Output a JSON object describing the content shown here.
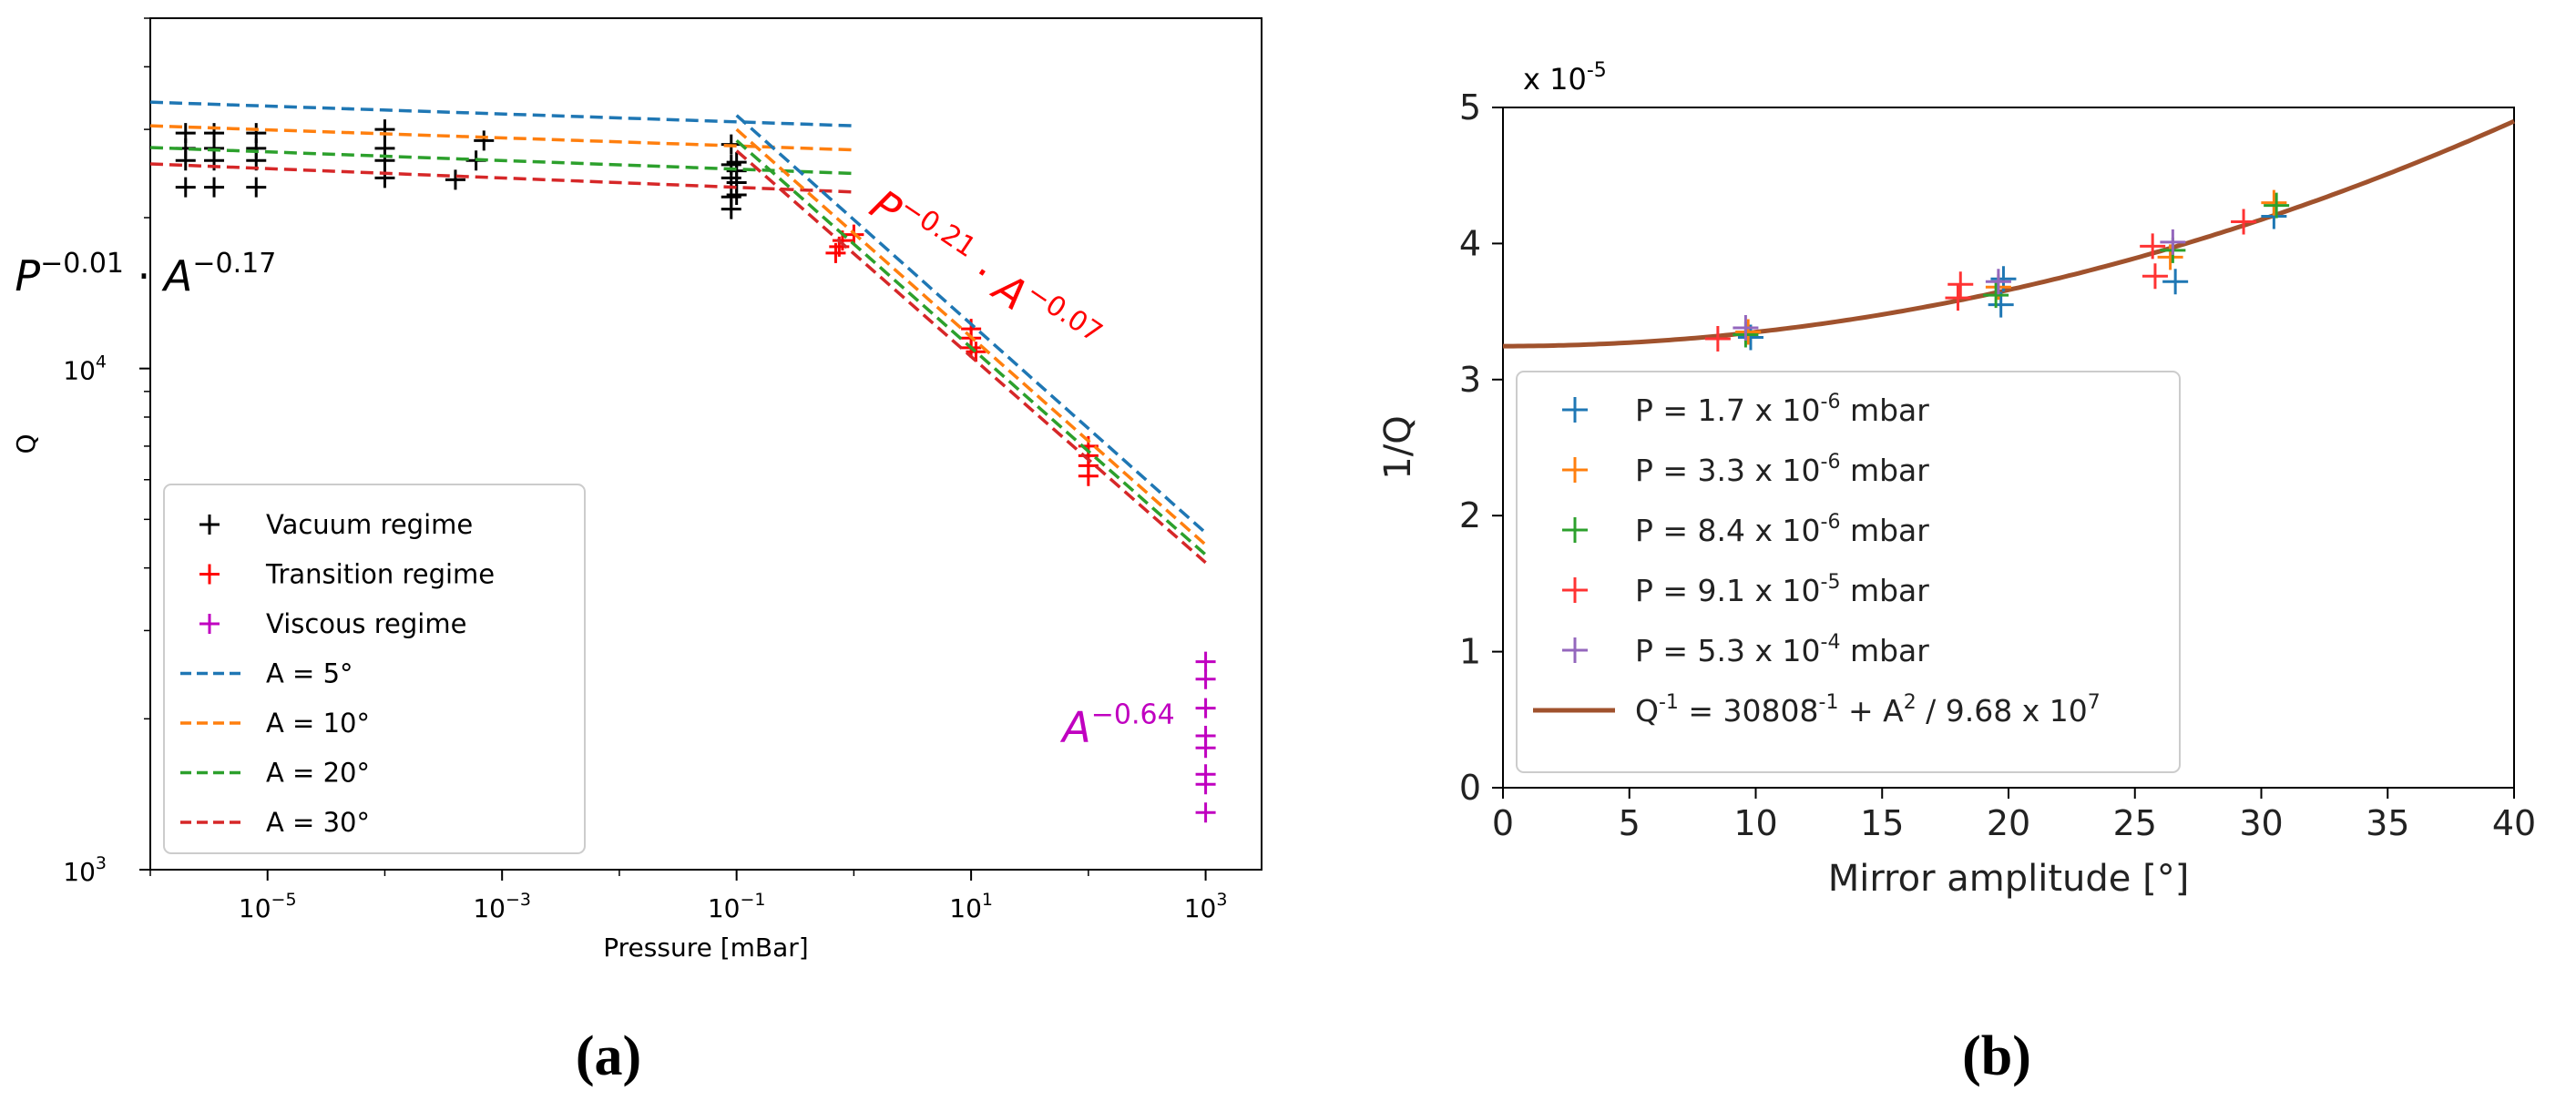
{
  "figure": {
    "panel_a_label": "(a)",
    "panel_b_label": "(b)"
  },
  "chart_data": [
    {
      "type": "scatter",
      "panel": "a",
      "xscale": "log",
      "yscale": "log",
      "xlabel": "Pressure [mBar]",
      "ylabel": "Q",
      "xlim": [
        1e-06,
        3000
      ],
      "ylim": [
        1000,
        50000
      ],
      "xticks": [
        {
          "value": 1e-05,
          "base": "10",
          "exp": "−5"
        },
        {
          "value": 0.001,
          "base": "10",
          "exp": "−3"
        },
        {
          "value": 0.1,
          "base": "10",
          "exp": "−1"
        },
        {
          "value": 10,
          "base": "10",
          "exp": "1"
        },
        {
          "value": 1000,
          "base": "10",
          "exp": "3"
        }
      ],
      "yticks": [
        {
          "value": 1000,
          "base": "10",
          "exp": "3"
        },
        {
          "value": 10000,
          "base": "10",
          "exp": "4"
        }
      ],
      "annotations": [
        {
          "id": "vacuum",
          "base1": "P",
          "exp1": "−0.01",
          "dot": "·",
          "base2": "A",
          "exp2": "−0.17",
          "color": "#000000",
          "anchor_x": 7e-08,
          "anchor_y": 14300,
          "angle": 0
        },
        {
          "id": "transition",
          "base1": "P",
          "exp1": "−0.21",
          "dot": "·",
          "base2": "A",
          "exp2": "−0.07",
          "color": "#ff0000",
          "anchor_x": 1.3,
          "anchor_y": 20500,
          "angle": 34
        },
        {
          "id": "viscous",
          "base1": "A",
          "exp1": "−0.64",
          "color": "#c000c0",
          "anchor_x": 60,
          "anchor_y": 1800,
          "angle": 0
        }
      ],
      "series": [
        {
          "name": "Vacuum regime",
          "kind": "points",
          "color": "#000000",
          "points": [
            [
              2e-06,
              29500
            ],
            [
              2e-06,
              27500
            ],
            [
              2e-06,
              26000
            ],
            [
              2e-06,
              23000
            ],
            [
              3.5e-06,
              29500
            ],
            [
              3.5e-06,
              27500
            ],
            [
              3.5e-06,
              26000
            ],
            [
              3.5e-06,
              23000
            ],
            [
              8e-06,
              29500
            ],
            [
              8e-06,
              27500
            ],
            [
              8e-06,
              26000
            ],
            [
              8e-06,
              23000
            ],
            [
              0.0001,
              30000
            ],
            [
              0.0001,
              27500
            ],
            [
              0.0001,
              26000
            ],
            [
              0.0001,
              24000
            ],
            [
              0.0004,
              23800
            ],
            [
              0.0006,
              26000
            ],
            [
              0.0007,
              28500
            ],
            [
              0.09,
              28000
            ],
            [
              0.09,
              25500
            ],
            [
              0.09,
              24000
            ],
            [
              0.09,
              22000
            ],
            [
              0.09,
              20800
            ],
            [
              0.1,
              25800
            ],
            [
              0.1,
              24800
            ],
            [
              0.1,
              23500
            ],
            [
              0.1,
              22200
            ]
          ]
        },
        {
          "name": "Transition regime",
          "kind": "points",
          "color": "#ff0000",
          "points": [
            [
              0.7,
              17000
            ],
            [
              0.75,
              17500
            ],
            [
              0.8,
              18000
            ],
            [
              1.0,
              18500
            ],
            [
              10,
              12000
            ],
            [
              10,
              11500
            ],
            [
              10,
              11000
            ],
            [
              11,
              10800
            ],
            [
              100,
              7000
            ],
            [
              100,
              6700
            ],
            [
              100,
              6400
            ],
            [
              100,
              6100
            ]
          ]
        },
        {
          "name": "Viscous regime",
          "kind": "points",
          "color": "#c000c0",
          "points": [
            [
              1000,
              2600
            ],
            [
              1000,
              2400
            ],
            [
              1000,
              2100
            ],
            [
              1000,
              1850
            ],
            [
              1000,
              1750
            ],
            [
              1000,
              1550
            ],
            [
              1000,
              1480
            ],
            [
              1000,
              1300
            ]
          ]
        },
        {
          "name": "A = 5°",
          "kind": "line",
          "color": "#1f77b4",
          "points": [
            [
              1e-06,
              34000
            ],
            [
              1,
              30500
            ]
          ]
        },
        {
          "name": "A = 10°",
          "kind": "line",
          "color": "#ff7f0e",
          "points": [
            [
              1e-06,
              30500
            ],
            [
              1,
              27300
            ]
          ]
        },
        {
          "name": "A = 20°",
          "kind": "line",
          "color": "#2ca02c",
          "points": [
            [
              1e-06,
              27600
            ],
            [
              1,
              24500
            ]
          ]
        },
        {
          "name": "A = 30°",
          "kind": "line",
          "color": "#d62728",
          "points": [
            [
              1e-06,
              25600
            ],
            [
              1,
              22500
            ]
          ]
        },
        {
          "name": "A = 5° (transition)",
          "kind": "line",
          "color": "#1f77b4",
          "legend": false,
          "points": [
            [
              0.1,
              32000
            ],
            [
              1000,
              4700
            ]
          ]
        },
        {
          "name": "A = 10° (transition)",
          "kind": "line",
          "color": "#ff7f0e",
          "legend": false,
          "points": [
            [
              0.1,
              30000
            ],
            [
              1000,
              4450
            ]
          ]
        },
        {
          "name": "A = 20° (transition)",
          "kind": "line",
          "color": "#2ca02c",
          "legend": false,
          "points": [
            [
              0.1,
              28500
            ],
            [
              1000,
              4250
            ]
          ]
        },
        {
          "name": "A = 30° (transition)",
          "kind": "line",
          "color": "#d62728",
          "legend": false,
          "points": [
            [
              0.1,
              27200
            ],
            [
              1000,
              4100
            ]
          ]
        }
      ],
      "legend": {
        "location": "lower-left",
        "entries": [
          {
            "label": "Vacuum regime",
            "kind": "marker",
            "color": "#000000"
          },
          {
            "label": "Transition regime",
            "kind": "marker",
            "color": "#ff0000"
          },
          {
            "label": "Viscous regime",
            "kind": "marker",
            "color": "#c000c0"
          },
          {
            "label": "A = 5°",
            "kind": "dash",
            "color": "#1f77b4"
          },
          {
            "label": "A = 10°",
            "kind": "dash",
            "color": "#ff7f0e"
          },
          {
            "label": "A = 20°",
            "kind": "dash",
            "color": "#2ca02c"
          },
          {
            "label": "A = 30°",
            "kind": "dash",
            "color": "#d62728"
          }
        ]
      }
    },
    {
      "type": "scatter",
      "panel": "b",
      "xscale": "linear",
      "yscale": "linear",
      "xlabel": "Mirror amplitude [°]",
      "ylabel": "1/Q",
      "scale_note": {
        "base": "x 10",
        "exp": "-5"
      },
      "xlim": [
        0,
        40
      ],
      "ylim": [
        0,
        5
      ],
      "xticks": [
        0,
        5,
        10,
        15,
        20,
        25,
        30,
        35,
        40
      ],
      "yticks": [
        0,
        1,
        2,
        3,
        4,
        5
      ],
      "fit": {
        "name": "Q-1 fit",
        "color": "#a0522d",
        "a": 3.2458,
        "b": 0.001033
      },
      "series": [
        {
          "name": "P = 1.7 x 10-6 mbar",
          "color": "#1f77b4",
          "points": [
            [
              9.8,
              3.31
            ],
            [
              19.7,
              3.55
            ],
            [
              19.8,
              3.74
            ],
            [
              26.6,
              3.72
            ],
            [
              30.5,
              4.2
            ]
          ]
        },
        {
          "name": "P = 3.3 x 10-6 mbar",
          "color": "#ff7f0e",
          "points": [
            [
              9.7,
              3.35
            ],
            [
              19.6,
              3.68
            ],
            [
              26.4,
              3.9
            ],
            [
              30.5,
              4.3
            ]
          ]
        },
        {
          "name": "P = 8.4 x 10-6 mbar",
          "color": "#2ca02c",
          "points": [
            [
              9.6,
              3.33
            ],
            [
              19.5,
              3.62
            ],
            [
              26.5,
              3.95
            ],
            [
              30.6,
              4.28
            ]
          ]
        },
        {
          "name": "P = 9.1 x 10-5 mbar",
          "color": "#ff3333",
          "points": [
            [
              8.5,
              3.3
            ],
            [
              18.0,
              3.6
            ],
            [
              18.1,
              3.7
            ],
            [
              25.8,
              3.76
            ],
            [
              25.7,
              3.98
            ],
            [
              29.3,
              4.16
            ]
          ]
        },
        {
          "name": "P = 5.3 x 10-4 mbar",
          "color": "#9467bd",
          "points": [
            [
              9.6,
              3.38
            ],
            [
              19.6,
              3.72
            ],
            [
              26.5,
              4.01
            ]
          ]
        }
      ],
      "legend": {
        "location": "center-left",
        "entries": [
          {
            "kind": "marker",
            "color": "#1f77b4",
            "parts": [
              "P  = 1.7 x 10",
              "-6",
              " mbar"
            ]
          },
          {
            "kind": "marker",
            "color": "#ff7f0e",
            "parts": [
              "P  = 3.3 x 10",
              "-6",
              " mbar"
            ]
          },
          {
            "kind": "marker",
            "color": "#2ca02c",
            "parts": [
              "P  = 8.4 x 10",
              "-6",
              " mbar"
            ]
          },
          {
            "kind": "marker",
            "color": "#ff3333",
            "parts": [
              "P  = 9.1 x 10",
              "-5",
              " mbar"
            ]
          },
          {
            "kind": "marker",
            "color": "#9467bd",
            "parts": [
              "P  = 5.3 x 10",
              "-4",
              " mbar"
            ]
          },
          {
            "kind": "line",
            "color": "#a0522d",
            "fit": true,
            "parts": [
              "Q",
              "-1",
              " = 30808",
              "-1",
              " + A",
              "2",
              " / 9.68 x 10",
              "7"
            ]
          }
        ]
      }
    }
  ]
}
